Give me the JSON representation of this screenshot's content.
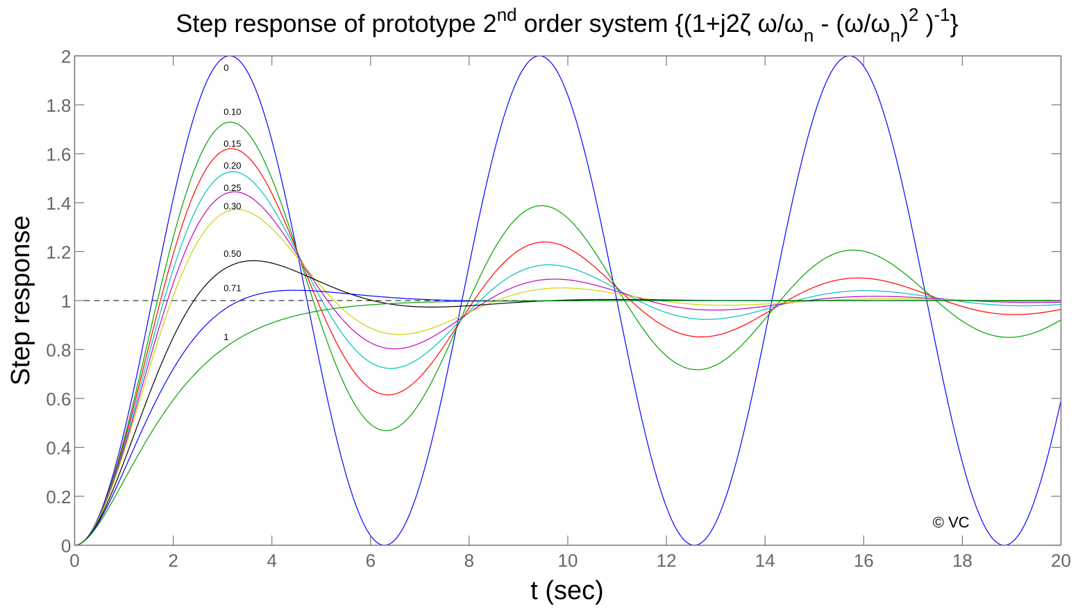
{
  "chart_data": {
    "type": "line",
    "title_segments": [
      {
        "text": "Step response of prototype 2",
        "style": "normal"
      },
      {
        "text": "nd",
        "style": "sup"
      },
      {
        "text": " order system {(1+j2ζ ω/ω",
        "style": "normal"
      },
      {
        "text": "n",
        "style": "sub"
      },
      {
        "text": " - (ω/ω",
        "style": "normal"
      },
      {
        "text": "n",
        "style": "sub"
      },
      {
        "text": ")",
        "style": "normal"
      },
      {
        "text": "2",
        "style": "sup"
      },
      {
        "text": " )",
        "style": "normal"
      },
      {
        "text": "-1",
        "style": "sup"
      },
      {
        "text": "}",
        "style": "normal"
      }
    ],
    "xlabel": "t (sec)",
    "ylabel": "Step response",
    "xlim": [
      0,
      20
    ],
    "ylim": [
      0,
      2
    ],
    "xticks": [
      "0",
      "2",
      "4",
      "6",
      "8",
      "10",
      "12",
      "14",
      "16",
      "18",
      "20"
    ],
    "yticks": [
      "0",
      "0.2",
      "0.4",
      "0.6",
      "0.8",
      "1",
      "1.2",
      "1.4",
      "1.6",
      "1.8",
      "2"
    ],
    "grid": false,
    "omega_n": 1,
    "reference_line": {
      "y": 1,
      "style": "dashed",
      "color": "#000000"
    },
    "series": [
      {
        "zeta": 0,
        "label": "0",
        "color": "#0000ff",
        "label_at": [
          3.05,
          1.95
        ]
      },
      {
        "zeta": 0.1,
        "label": "0.10",
        "color": "#00a000",
        "label_at": [
          3.05,
          1.77
        ]
      },
      {
        "zeta": 0.15,
        "label": "0.15",
        "color": "#ff0000",
        "label_at": [
          3.05,
          1.64
        ]
      },
      {
        "zeta": 0.2,
        "label": "0.20",
        "color": "#00c0c0",
        "label_at": [
          3.05,
          1.55
        ]
      },
      {
        "zeta": 0.25,
        "label": "0.25",
        "color": "#c000c0",
        "label_at": [
          3.05,
          1.46
        ]
      },
      {
        "zeta": 0.3,
        "label": "0.30",
        "color": "#d0d000",
        "label_at": [
          3.05,
          1.385
        ]
      },
      {
        "zeta": 0.5,
        "label": "0.50",
        "color": "#000000",
        "label_at": [
          3.05,
          1.19
        ]
      },
      {
        "zeta": 0.71,
        "label": "0.71",
        "color": "#0000ff",
        "label_at": [
          3.05,
          1.05
        ]
      },
      {
        "zeta": 1,
        "label": "1",
        "color": "#00a000",
        "label_at": [
          3.05,
          0.85
        ]
      }
    ],
    "annotations": [
      {
        "text": "© VC",
        "at": [
          17.4,
          0.095
        ]
      }
    ]
  }
}
